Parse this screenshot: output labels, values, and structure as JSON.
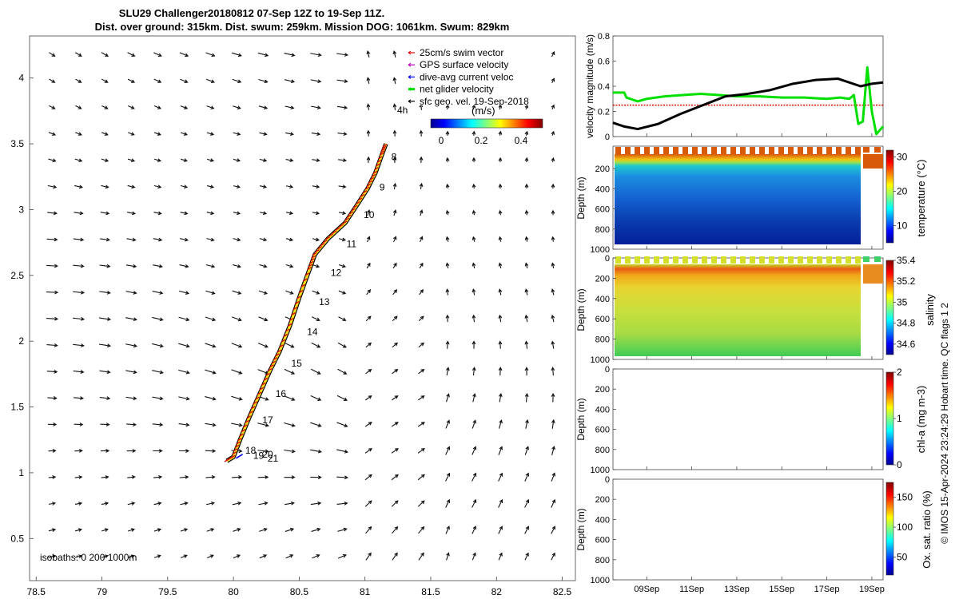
{
  "title": {
    "line1": "SLU29 Challenger20180812 07-Sep 12Z to 19-Sep 11Z.",
    "line2": "Dist. over ground: 315km. Dist. swum: 259km. Mission DOG: 1061km. Swum: 829km"
  },
  "legend": {
    "items": [
      {
        "label": "25cm/s swim vector",
        "color": "#e00000"
      },
      {
        "label": "GPS surface velocity",
        "color": "#c000c0"
      },
      {
        "label": "dive-avg current veloc",
        "color": "#0000ff"
      },
      {
        "label": "net glider velocity",
        "color": "#00e000"
      },
      {
        "label": "sfc geo. vel. 19-Sep-2018",
        "color": "#000000"
      }
    ],
    "time_step_label": "4h"
  },
  "colorbar_map": {
    "unit": "(m/s)",
    "ticks": [
      "0",
      "0.2",
      "0.4"
    ]
  },
  "isobaths_label": "isobaths: 0   200  1000m",
  "credit": "© IMOS 15-Apr-2024 23:24:29 Hobart time. QC flags 1  2",
  "chart_data": [
    {
      "type": "line",
      "panel": "map",
      "xlim": [
        78.45,
        82.6
      ],
      "ylim": [
        0.18,
        4.32
      ],
      "x_ticks": [
        78.5,
        79,
        79.5,
        80,
        80.5,
        81,
        81.5,
        82,
        82.5
      ],
      "y_ticks": [
        0.5,
        1,
        1.5,
        2,
        2.5,
        3,
        3.5,
        4
      ],
      "x_tick_labels": [
        "78.5",
        "79",
        "79.5",
        "80",
        "80.5",
        "81",
        "81.5",
        "82",
        "82.5"
      ],
      "y_tick_labels": [
        "0.5",
        "1",
        "1.5",
        "2",
        "2.5",
        "3",
        "3.5",
        "4"
      ],
      "glider_track": {
        "x": [
          79.95,
          80.0,
          80.05,
          80.12,
          80.2,
          80.28,
          80.35,
          80.43,
          80.5,
          80.58,
          80.62,
          80.72,
          80.85,
          80.93,
          81.02,
          81.08,
          81.13,
          81.16
        ],
        "y": [
          1.09,
          1.12,
          1.25,
          1.42,
          1.6,
          1.78,
          1.92,
          2.12,
          2.33,
          2.55,
          2.66,
          2.78,
          2.9,
          3.02,
          3.16,
          3.28,
          3.42,
          3.5
        ]
      },
      "day_labels": [
        {
          "text": "8",
          "x": 81.2,
          "y": 3.4
        },
        {
          "text": "9",
          "x": 81.11,
          "y": 3.17
        },
        {
          "text": "10",
          "x": 80.99,
          "y": 2.96
        },
        {
          "text": "11",
          "x": 80.86,
          "y": 2.74
        },
        {
          "text": "12",
          "x": 80.74,
          "y": 2.52
        },
        {
          "text": "13",
          "x": 80.65,
          "y": 2.3
        },
        {
          "text": "14",
          "x": 80.56,
          "y": 2.07
        },
        {
          "text": "15",
          "x": 80.44,
          "y": 1.83
        },
        {
          "text": "16",
          "x": 80.32,
          "y": 1.6
        },
        {
          "text": "17",
          "x": 80.22,
          "y": 1.4
        },
        {
          "text": "18",
          "x": 80.09,
          "y": 1.17
        },
        {
          "text": "19",
          "x": 80.15,
          "y": 1.13
        },
        {
          "text": "20",
          "x": 80.22,
          "y": 1.14
        },
        {
          "text": "21",
          "x": 80.26,
          "y": 1.11
        }
      ]
    },
    {
      "type": "line",
      "panel": "velocity",
      "ylabel": "velocity magnitude (m/s)",
      "ylim": [
        0,
        0.8
      ],
      "y_ticks": [
        "0",
        "0.2",
        "0.4",
        "0.6",
        "0.8"
      ],
      "x_dates": [
        "09Sep",
        "11Sep",
        "13Sep",
        "15Sep",
        "17Sep",
        "19Sep"
      ],
      "x_range_days": [
        7.5,
        19.5
      ],
      "series": [
        {
          "color": "#e00000",
          "x": [
            7.5,
            19.5
          ],
          "y": [
            0.25,
            0.25
          ]
        },
        {
          "color": "#00e000",
          "x": [
            7.5,
            8.0,
            8.1,
            8.6,
            9.0,
            9.8,
            10.6,
            11.4,
            12.2,
            13.0,
            14.0,
            15.0,
            16.0,
            17.0,
            17.6,
            18.0,
            18.2,
            18.4,
            18.6,
            18.8,
            19.0,
            19.2,
            19.5
          ],
          "y": [
            0.35,
            0.35,
            0.31,
            0.28,
            0.3,
            0.32,
            0.33,
            0.34,
            0.33,
            0.32,
            0.32,
            0.31,
            0.31,
            0.3,
            0.31,
            0.3,
            0.33,
            0.1,
            0.12,
            0.55,
            0.2,
            0.02,
            0.08
          ]
        },
        {
          "color": "#000000",
          "x": [
            7.5,
            8.0,
            8.6,
            9.5,
            10.5,
            11.5,
            12.5,
            13.5,
            14.5,
            15.5,
            16.5,
            17.5,
            18.5,
            19.0,
            19.5
          ],
          "y": [
            0.11,
            0.08,
            0.06,
            0.1,
            0.18,
            0.25,
            0.32,
            0.34,
            0.37,
            0.42,
            0.45,
            0.46,
            0.4,
            0.42,
            0.43
          ]
        }
      ]
    },
    {
      "type": "heatmap",
      "panel": "temperature",
      "ylabel": "Depth (m)",
      "clabel": "temperature (°C)",
      "y_ticks": [
        "200",
        "400",
        "600",
        "800",
        "1000"
      ],
      "cbar_ticks": [
        "10",
        "20",
        "30"
      ],
      "clim": [
        5,
        32
      ],
      "depth_range": [
        0,
        1000
      ],
      "profiles": {
        "surface": 29,
        "mixed_layer_depth": 60,
        "thermocline_bottom": 180,
        "deep": 6
      }
    },
    {
      "type": "heatmap",
      "panel": "salinity",
      "ylabel": "Depth (m)",
      "clabel": "salinity",
      "y_ticks": [
        "0",
        "200",
        "400",
        "600",
        "800",
        "1000"
      ],
      "cbar_ticks": [
        "34.6",
        "34.8",
        "35",
        "35.2",
        "35.4"
      ],
      "clim": [
        34.5,
        35.4
      ],
      "depth_range": [
        0,
        1000
      ],
      "profiles": {
        "surface": 35.0,
        "max_at_depth": 120,
        "max": 35.35,
        "deep": 34.95
      }
    },
    {
      "type": "heatmap",
      "panel": "chl-a",
      "ylabel": "Depth (m)",
      "clabel": "chl-a (mg m-3)",
      "y_ticks": [
        "0",
        "200",
        "400",
        "600",
        "800",
        "1000"
      ],
      "cbar_ticks": [
        "0",
        "1",
        "2"
      ],
      "depth_range": [
        0,
        1000
      ]
    },
    {
      "type": "heatmap",
      "panel": "oxygen",
      "ylabel": "Depth (m)",
      "clabel": "Ox. sat. ratio (%)",
      "y_ticks": [
        "0",
        "200",
        "400",
        "600",
        "800",
        "1000"
      ],
      "cbar_ticks": [
        "50",
        "100",
        "150"
      ],
      "depth_range": [
        0,
        1000
      ]
    }
  ]
}
